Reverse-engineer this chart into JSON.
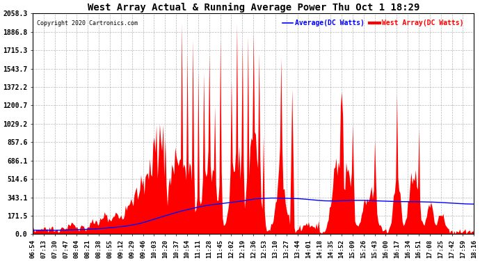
{
  "title": "West Array Actual & Running Average Power Thu Oct 1 18:29",
  "copyright": "Copyright 2020 Cartronics.com",
  "legend_avg": "Average(DC Watts)",
  "legend_west": "West Array(DC Watts)",
  "ymax": 2058.3,
  "ymin": 0.0,
  "yticks": [
    0.0,
    171.5,
    343.1,
    514.6,
    686.1,
    857.6,
    1029.2,
    1200.7,
    1372.2,
    1543.7,
    1715.3,
    1886.8,
    2058.3
  ],
  "xtick_labels": [
    "06:54",
    "07:13",
    "07:30",
    "07:47",
    "08:04",
    "08:21",
    "08:38",
    "08:55",
    "09:12",
    "09:29",
    "09:46",
    "10:03",
    "10:20",
    "10:37",
    "10:54",
    "11:11",
    "11:28",
    "11:45",
    "12:02",
    "12:19",
    "12:36",
    "12:53",
    "13:10",
    "13:27",
    "13:44",
    "14:01",
    "14:18",
    "14:35",
    "14:52",
    "15:09",
    "15:26",
    "15:43",
    "16:00",
    "16:17",
    "16:34",
    "16:51",
    "17:08",
    "17:25",
    "17:42",
    "17:59",
    "18:16"
  ],
  "fill_color": "#ff0000",
  "line_color": "#0000ff",
  "background_color": "#ffffff",
  "grid_color": "#888888",
  "title_color": "#000000",
  "copyright_color": "#000000",
  "avg_legend_color": "#0000ff",
  "west_legend_color": "#ff0000",
  "title_fontsize": 10,
  "copyright_fontsize": 6,
  "tick_fontsize": 6.5,
  "ytick_fontsize": 7
}
